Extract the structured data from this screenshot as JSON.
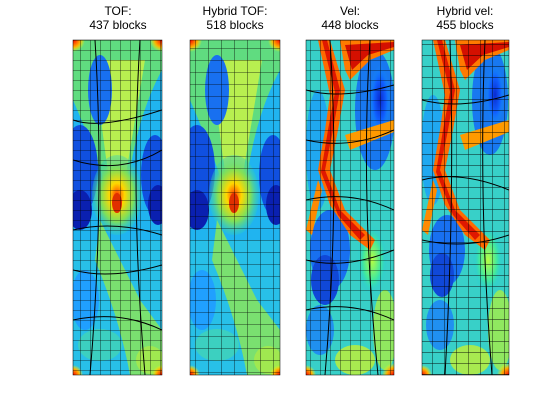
{
  "figure": {
    "panels": [
      {
        "title_line1": "TOF:",
        "title_line2": "437 blocks"
      },
      {
        "title_line1": "Hybrid TOF:",
        "title_line2": "518 blocks"
      },
      {
        "title_line1": "Vel:",
        "title_line2": "448 blocks"
      },
      {
        "title_line1": "Hybrid vel:",
        "title_line2": "455 blocks"
      }
    ]
  },
  "colors": {
    "colormap": "jet",
    "grid_lines": "#000000",
    "background": "#ffffff"
  }
}
